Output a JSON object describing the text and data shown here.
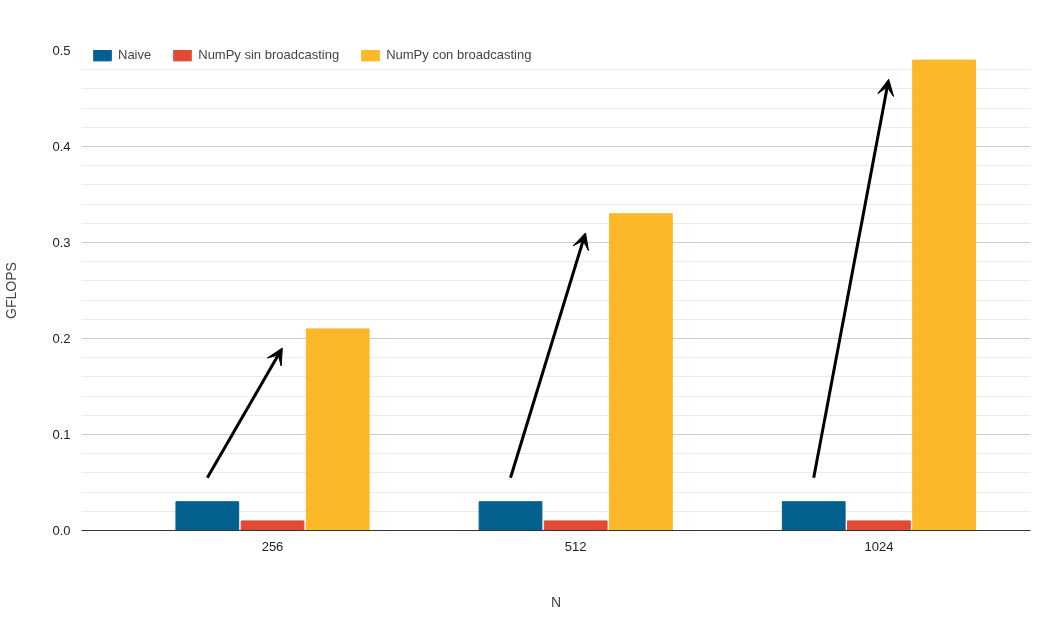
{
  "chart_data": {
    "type": "bar",
    "xlabel": "N",
    "ylabel": "GFLOPS",
    "categories": [
      "256",
      "512",
      "1024"
    ],
    "series": [
      {
        "name": "Naive",
        "color": "#04608f",
        "values": [
          0.03,
          0.03,
          0.03
        ]
      },
      {
        "name": "NumPy sin broadcasting",
        "color": "#e04b35",
        "values": [
          0.01,
          0.01,
          0.01
        ]
      },
      {
        "name": "NumPy con broadcasting",
        "color": "#fbb829",
        "values": [
          0.21,
          0.33,
          0.49
        ]
      }
    ],
    "ylim": [
      0,
      0.5
    ],
    "yticks": [
      {
        "value": 0,
        "label": "0.0"
      },
      0.1,
      0.2,
      0.3,
      0.4,
      0.5
    ],
    "grid": "y",
    "legend": "top"
  }
}
